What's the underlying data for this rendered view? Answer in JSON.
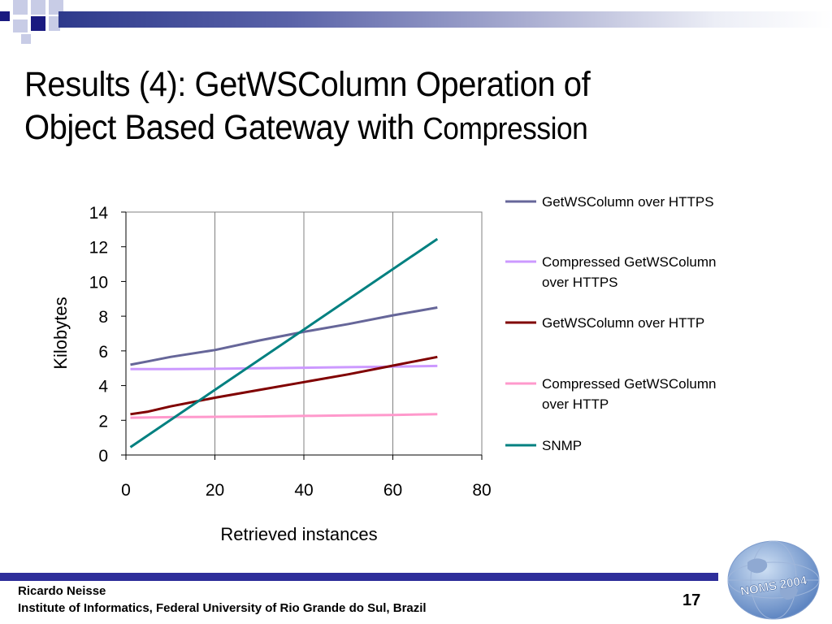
{
  "slide": {
    "title_line1": "Results (4): GetWSColumn Operation  of",
    "title_line2a": "Object Based Gateway with ",
    "title_line2b": "Compression",
    "footer_author": "Ricardo Neisse",
    "footer_institution": "Institute of Informatics, Federal University of Rio Grande do Sul, Brazil",
    "page_number": "17",
    "logo_text": "NOMS 2004"
  },
  "chart_data": {
    "type": "line",
    "title": "",
    "xlabel": "Retrieved instances",
    "ylabel": "Kilobytes",
    "xlim": [
      0,
      80
    ],
    "ylim": [
      0,
      14
    ],
    "xticks": [
      0,
      20,
      40,
      60,
      80
    ],
    "yticks": [
      0,
      2,
      4,
      6,
      8,
      10,
      12,
      14
    ],
    "grid": "vertical",
    "legend": "right",
    "series": [
      {
        "name": "GetWSColumn over HTTPS",
        "color": "#666699",
        "x": [
          1,
          5,
          10,
          20,
          30,
          40,
          50,
          60,
          70
        ],
        "y": [
          5.2,
          5.4,
          5.65,
          6.05,
          6.6,
          7.1,
          7.55,
          8.05,
          8.5
        ]
      },
      {
        "name": "Compressed GetWSColumn over HTTPS",
        "color": "#cc99ff",
        "x": [
          1,
          10,
          20,
          30,
          40,
          50,
          60,
          70
        ],
        "y": [
          4.95,
          4.95,
          4.97,
          5.0,
          5.03,
          5.06,
          5.09,
          5.13
        ]
      },
      {
        "name": "GetWSColumn over HTTP",
        "color": "#800000",
        "x": [
          1,
          5,
          10,
          20,
          30,
          40,
          50,
          60,
          70
        ],
        "y": [
          2.35,
          2.5,
          2.8,
          3.3,
          3.75,
          4.2,
          4.65,
          5.15,
          5.65
        ]
      },
      {
        "name": "Compressed GetWSColumn over HTTP",
        "color": "#ff99cc",
        "x": [
          1,
          10,
          20,
          30,
          40,
          50,
          60,
          70
        ],
        "y": [
          2.15,
          2.18,
          2.2,
          2.22,
          2.25,
          2.28,
          2.31,
          2.35
        ]
      },
      {
        "name": "SNMP",
        "color": "#008080",
        "x": [
          1,
          70
        ],
        "y": [
          0.45,
          12.45
        ]
      }
    ]
  }
}
